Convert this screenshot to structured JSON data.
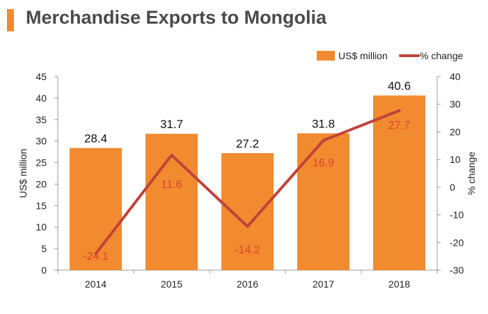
{
  "title": "Merchandise Exports to Mongolia",
  "colors": {
    "bar": "#f28a30",
    "line": "#c0433a",
    "line_label": "#d9442a",
    "title_bar": "#f28a30"
  },
  "chart_data": {
    "type": "bar+line",
    "categories": [
      "2014",
      "2015",
      "2016",
      "2017",
      "2018"
    ],
    "series": [
      {
        "name": "US$ million",
        "type": "bar",
        "axis": "left",
        "values": [
          28.4,
          31.7,
          27.2,
          31.8,
          40.6
        ],
        "labels": [
          "28.4",
          "31.7",
          "27.2",
          "31.8",
          "40.6"
        ]
      },
      {
        "name": "% change",
        "type": "line",
        "axis": "right",
        "values": [
          -24.1,
          11.6,
          -14.2,
          16.9,
          27.7
        ],
        "labels": [
          "-24.1",
          "11.6",
          "-14.2",
          "16.9",
          "27.7"
        ]
      }
    ],
    "ylabel_left": "US$ million",
    "ylabel_right": "% change",
    "ylim_left": [
      0,
      45
    ],
    "ylim_right": [
      -30,
      40
    ],
    "yticks_left": [
      "0",
      "5",
      "10",
      "15",
      "20",
      "25",
      "30",
      "35",
      "40",
      "45"
    ],
    "yticks_right": [
      "-30",
      "-20",
      "-10",
      "0",
      "10",
      "20",
      "30",
      "40"
    ],
    "legend_position": "top-right",
    "grid": false
  }
}
